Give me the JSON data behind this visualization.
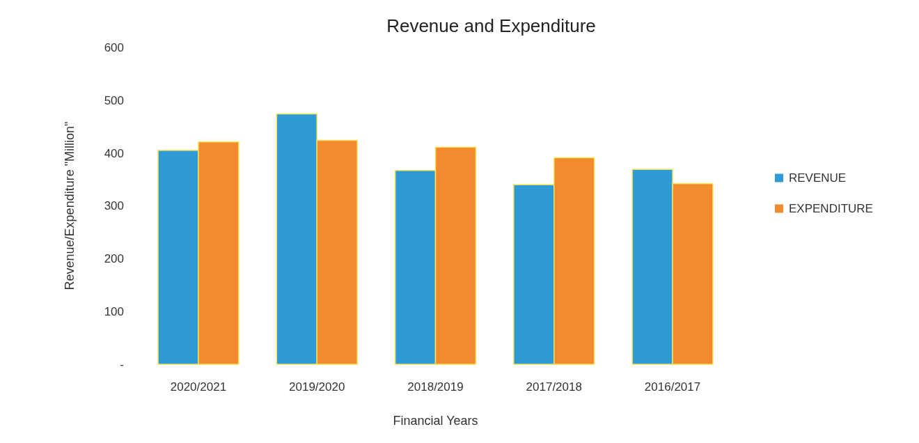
{
  "chart_data": {
    "type": "bar",
    "title": "Revenue and Expenditure",
    "xlabel": "Financial Years",
    "ylabel": "Revenue/Expenditure \"Million\"",
    "categories": [
      "2020/2021",
      "2019/2020",
      "2018/2019",
      "2017/2018",
      "2016/2017"
    ],
    "series": [
      {
        "name": "REVENUE",
        "color": "#2e9bd6",
        "values": [
          405,
          474,
          367,
          340,
          369
        ]
      },
      {
        "name": "EXPENDITURE",
        "color": "#f28a30",
        "values": [
          421,
          424,
          411,
          391,
          342
        ]
      }
    ],
    "ylim": [
      0,
      600
    ],
    "yticks": [
      {
        "value": 0,
        "label": "-"
      },
      100,
      200,
      300,
      400,
      500,
      600
    ],
    "legend": "right"
  }
}
